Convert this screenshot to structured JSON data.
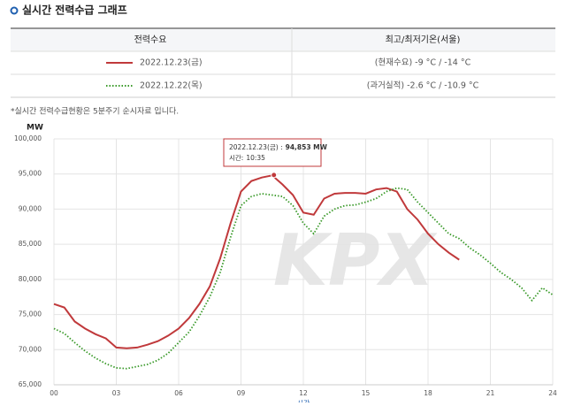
{
  "header": {
    "title": "실시간 전력수급 그래프"
  },
  "table": {
    "columns": [
      "전력수요",
      "최고/최저기온(서울)"
    ],
    "rows": [
      [
        "(현재수요) -9 °C / -14 °C"
      ],
      [
        "(과거실적) -2.6 °C / -10.9 °C"
      ]
    ]
  },
  "note": "*실시간 전력수급현황은 5분주기 순시자료 입니다.",
  "chart_data": {
    "type": "line",
    "y_unit": "MW",
    "x_label": "시간",
    "watermark": "KPX",
    "x": [
      0,
      0.5,
      1,
      1.5,
      2,
      2.5,
      3,
      3.5,
      4,
      4.5,
      5,
      5.5,
      6,
      6.5,
      7,
      7.5,
      8,
      8.5,
      9,
      9.5,
      10,
      10.5,
      11,
      11.5,
      12,
      12.5,
      13,
      13.5,
      14,
      14.5,
      15,
      15.5,
      16,
      16.5,
      17,
      17.5,
      18,
      18.5,
      19,
      19.5,
      20,
      20.5,
      21,
      21.5,
      22,
      22.5,
      23,
      23.5,
      24
    ],
    "series": [
      {
        "name": "2022.12.23(금)",
        "color": "#c0393b",
        "style": "solid",
        "values": [
          76500,
          76000,
          74000,
          73000,
          72200,
          71600,
          70300,
          70200,
          70300,
          70700,
          71200,
          72000,
          73000,
          74500,
          76500,
          79000,
          83000,
          88000,
          92500,
          94000,
          94500,
          94800,
          93500,
          92000,
          89500,
          89200,
          91500,
          92200,
          92300,
          92300,
          92200,
          92800,
          93000,
          92500,
          90000,
          88500,
          86500,
          85000,
          83800,
          82800,
          null,
          null,
          null,
          null,
          null,
          null,
          null,
          null,
          null
        ]
      },
      {
        "name": "2022.12.22(목)",
        "color": "#3a9a2a",
        "style": "dotted",
        "values": [
          73000,
          72300,
          71000,
          69800,
          68800,
          68000,
          67400,
          67300,
          67600,
          67900,
          68500,
          69500,
          71000,
          72500,
          74800,
          77500,
          81000,
          86000,
          90500,
          91800,
          92200,
          92000,
          91800,
          90500,
          88000,
          86500,
          89000,
          90000,
          90500,
          90600,
          91000,
          91500,
          92500,
          93000,
          92800,
          91000,
          89500,
          88000,
          86500,
          85800,
          84500,
          83500,
          82300,
          81000,
          80000,
          78800,
          77000,
          78800,
          77800
        ]
      }
    ],
    "xlim": [
      0,
      24
    ],
    "xticks": [
      {
        "value": 0,
        "label": "00"
      },
      {
        "value": 3,
        "label": "03"
      },
      {
        "value": 6,
        "label": "06"
      },
      {
        "value": 9,
        "label": "09"
      },
      {
        "value": 12,
        "label": "12"
      },
      {
        "value": 15,
        "label": "15"
      },
      {
        "value": 18,
        "label": "18"
      },
      {
        "value": 21,
        "label": "21"
      },
      {
        "value": 24,
        "label": "24"
      }
    ],
    "ylim": [
      65000,
      100000
    ],
    "yticks": [
      {
        "value": 65000,
        "label": "65,000"
      },
      {
        "value": 70000,
        "label": "70,000"
      },
      {
        "value": 75000,
        "label": "75,000"
      },
      {
        "value": 80000,
        "label": "80,000"
      },
      {
        "value": 85000,
        "label": "85,000"
      },
      {
        "value": 90000,
        "label": "90,000"
      },
      {
        "value": 95000,
        "label": "95,000"
      },
      {
        "value": 100000,
        "label": "100,000"
      }
    ],
    "grid": true,
    "tooltip": {
      "date_label": "2022.12.23(금) :",
      "value": 94853,
      "value_label": "94,853 MW",
      "time_label": "시간:",
      "time": "10:35"
    }
  }
}
